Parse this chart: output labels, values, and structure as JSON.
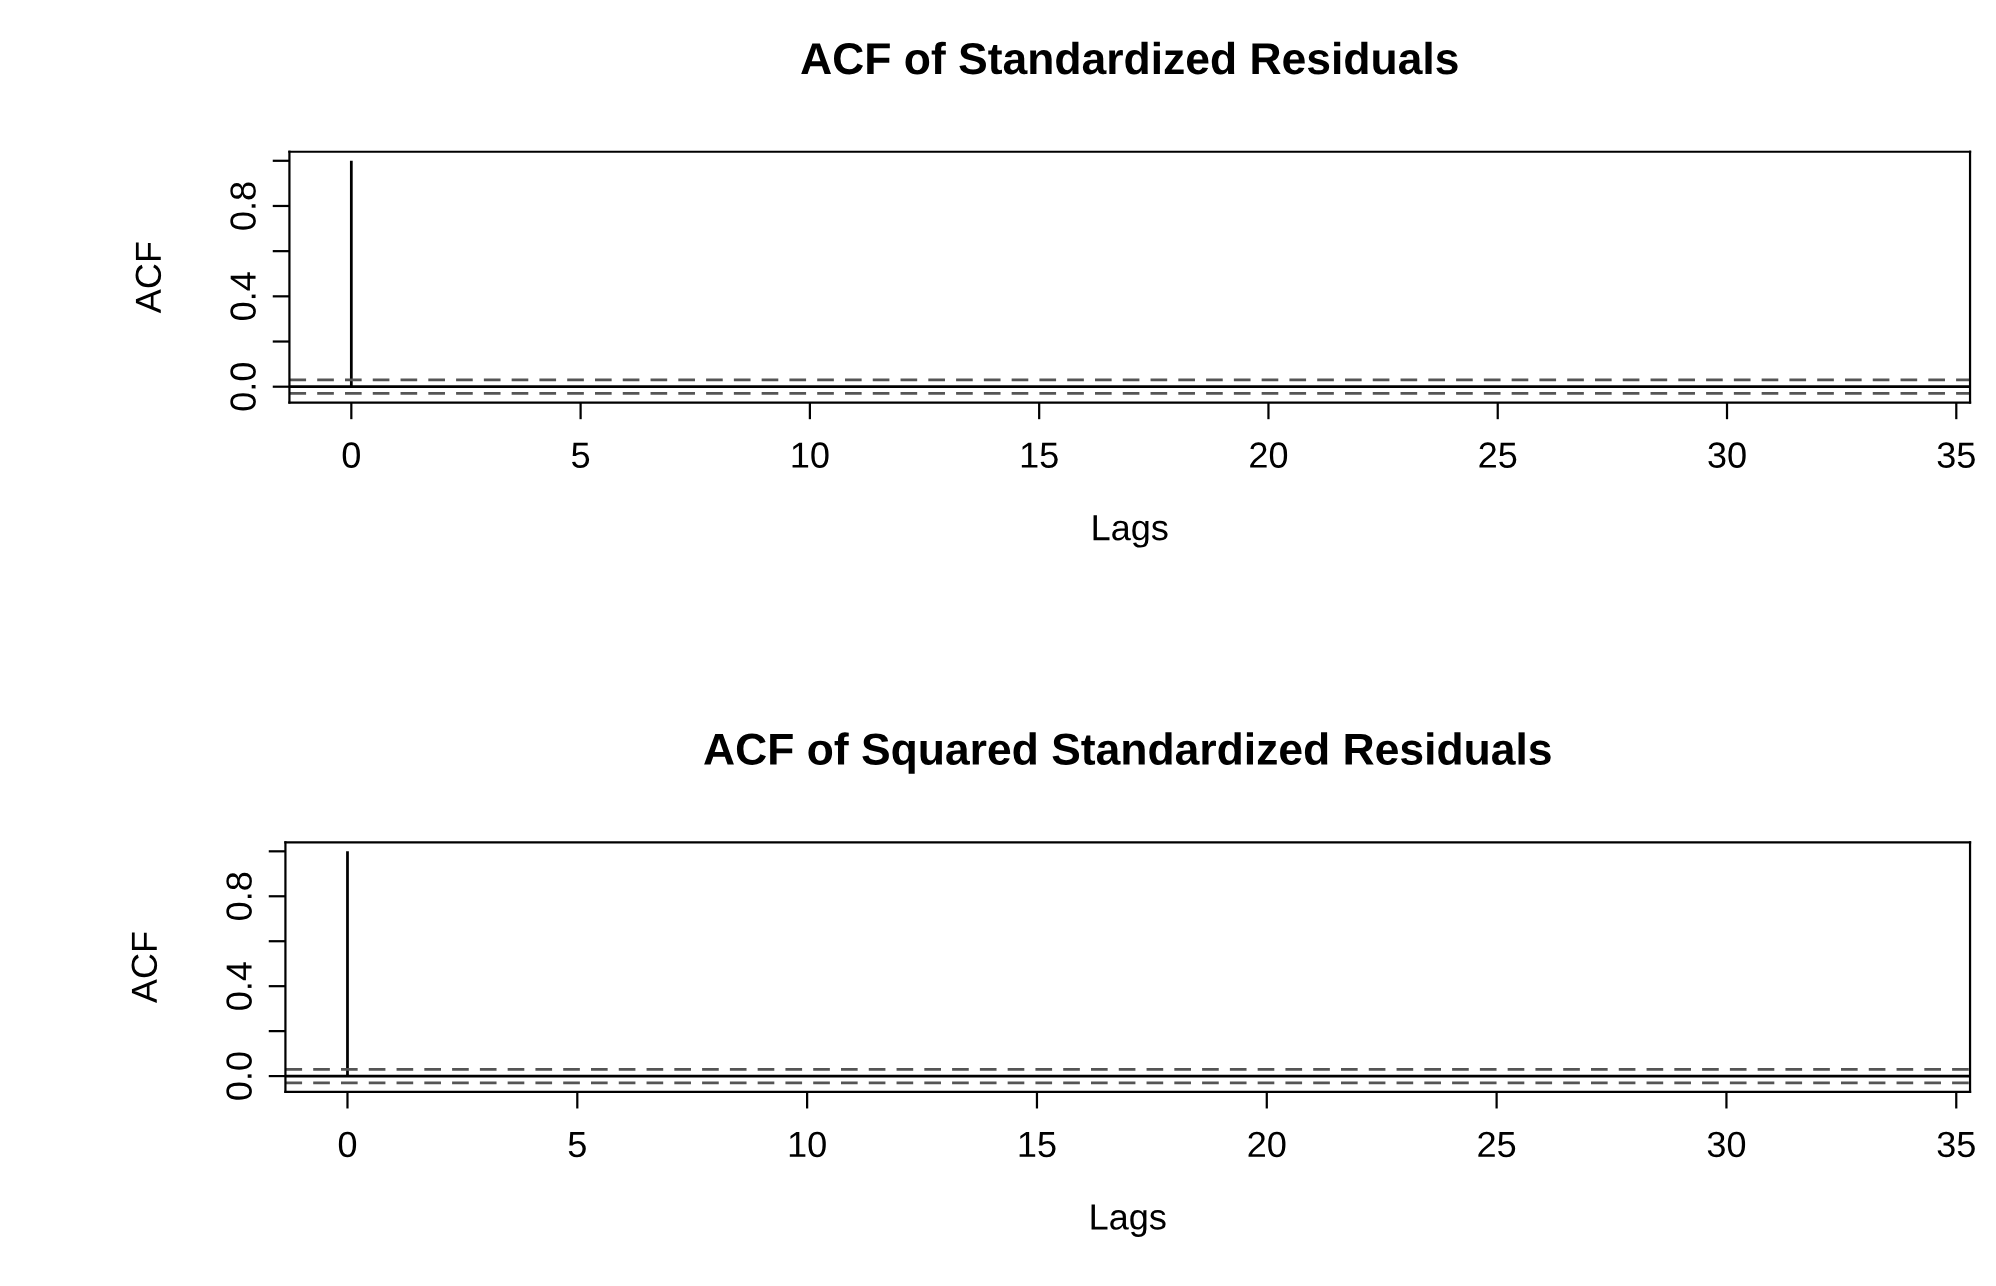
{
  "chart_data": [
    {
      "type": "bar",
      "title": "ACF of Standardized Residuals",
      "xlabel": "Lags",
      "ylabel": "ACF",
      "x": [
        0
      ],
      "values": [
        1
      ],
      "color": "#000000",
      "xlim": [
        -1.35,
        35.3
      ],
      "xticks": [
        0,
        5,
        10,
        15,
        20,
        25,
        30,
        35
      ],
      "ylim": [
        -0.07,
        1.04
      ],
      "yticks": [
        {
          "value": 0,
          "label": "0.0"
        },
        {
          "value": 0.2,
          "label": null
        },
        {
          "value": 0.4,
          "label": "0.4"
        },
        {
          "value": 0.6,
          "label": null
        },
        {
          "value": 0.8,
          "label": "0.8"
        },
        {
          "value": 1.0,
          "label": null
        }
      ],
      "ref_lines": [
        {
          "axis": "y",
          "value": 0,
          "color": "#000000",
          "line_style": "solid"
        },
        {
          "axis": "y",
          "value": 0.03,
          "color": "#555555",
          "line_style": "dashed"
        },
        {
          "axis": "y",
          "value": -0.03,
          "color": "#555555",
          "line_style": "dashed"
        }
      ],
      "grid": false,
      "legend": false
    },
    {
      "type": "bar",
      "title": "ACF of Squared Standardized Residuals",
      "xlabel": "Lags",
      "ylabel": "ACF",
      "x": [
        0
      ],
      "values": [
        1
      ],
      "color": "#000000",
      "xlim": [
        -1.35,
        35.3
      ],
      "xticks": [
        0,
        5,
        10,
        15,
        20,
        25,
        30,
        35
      ],
      "ylim": [
        -0.07,
        1.04
      ],
      "yticks": [
        {
          "value": 0,
          "label": "0.0"
        },
        {
          "value": 0.2,
          "label": null
        },
        {
          "value": 0.4,
          "label": "0.4"
        },
        {
          "value": 0.6,
          "label": null
        },
        {
          "value": 0.8,
          "label": "0.8"
        },
        {
          "value": 1.0,
          "label": null
        }
      ],
      "ref_lines": [
        {
          "axis": "y",
          "value": 0,
          "color": "#000000",
          "line_style": "solid"
        },
        {
          "axis": "y",
          "value": 0.03,
          "color": "#555555",
          "line_style": "dashed"
        },
        {
          "axis": "y",
          "value": -0.03,
          "color": "#555555",
          "line_style": "dashed"
        }
      ],
      "grid": false,
      "legend": false
    }
  ]
}
